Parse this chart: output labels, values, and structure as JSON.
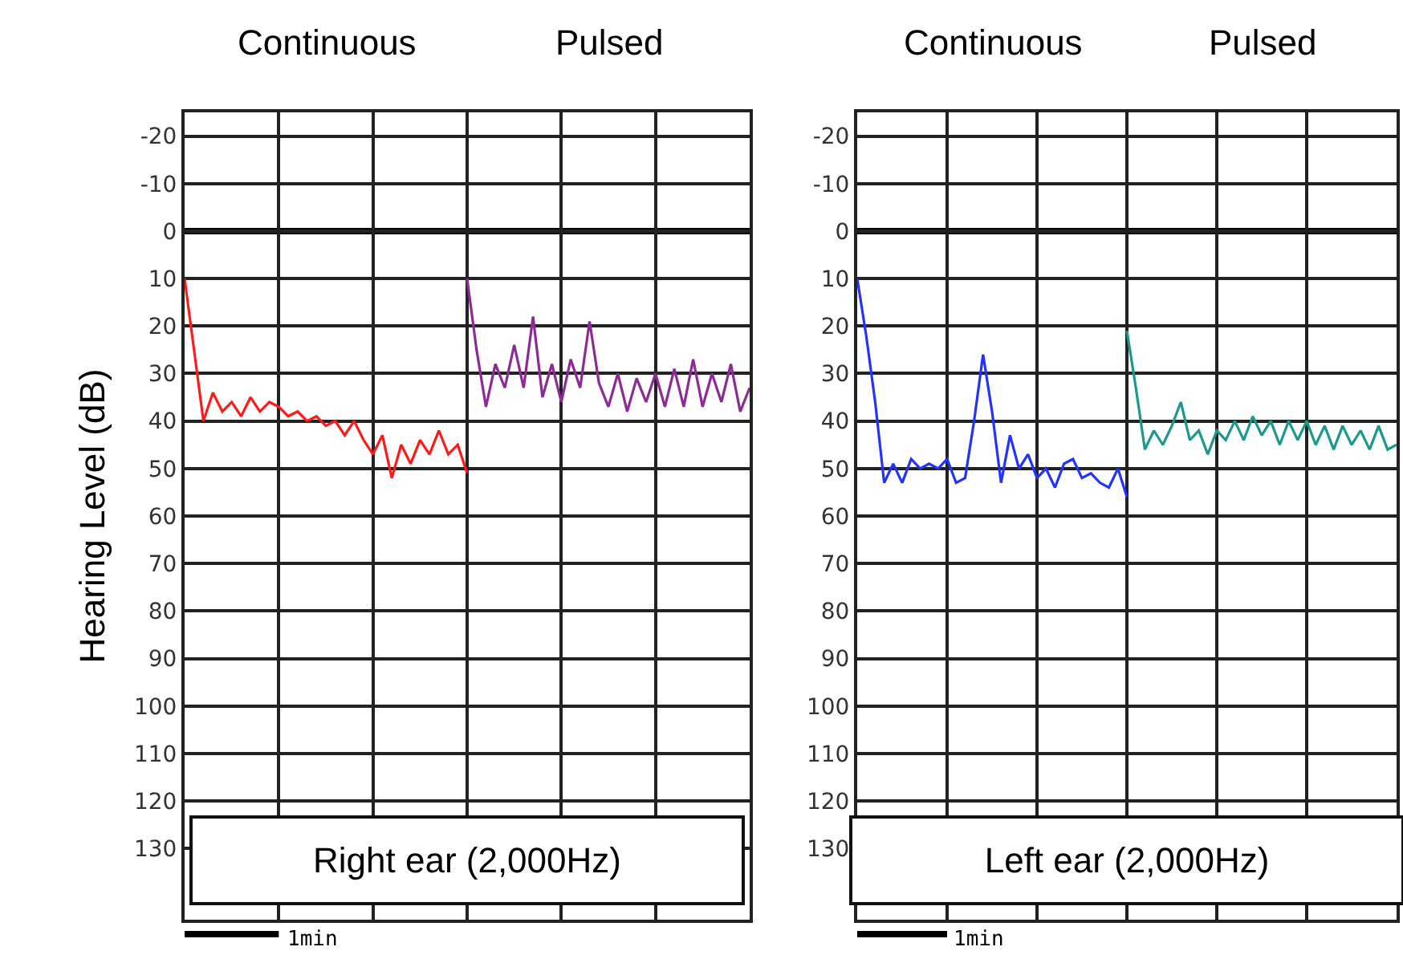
{
  "chart_data": [
    {
      "type": "line",
      "ylabel": "Hearing Level (dB)",
      "categories": [
        null,
        null,
        null,
        null,
        null,
        null,
        null,
        null,
        null,
        null,
        null,
        null,
        null,
        null,
        null,
        null,
        null,
        null,
        null,
        null,
        null,
        null,
        null,
        null,
        null,
        null,
        null,
        null,
        null,
        null,
        null,
        null,
        null,
        null,
        null,
        null,
        null,
        null,
        null,
        null,
        null,
        null,
        null,
        null,
        null,
        null,
        null,
        null,
        null,
        null,
        null,
        null,
        null,
        null,
        null,
        null,
        null,
        null,
        null,
        null,
        null
      ],
      "series": [
        {
          "color": "#ff1a1a",
          "values": [
            10,
            25,
            40,
            34,
            38,
            36,
            39,
            35,
            38,
            36,
            37,
            39,
            38,
            40,
            39,
            41,
            40,
            43,
            40,
            44,
            47,
            43,
            52,
            45,
            49,
            44,
            47,
            42,
            47,
            45,
            51,
            null,
            null,
            null,
            null,
            null,
            null,
            null,
            null,
            null,
            null,
            null,
            null,
            null,
            null,
            null,
            null,
            null,
            null,
            null,
            null,
            null,
            null,
            null,
            null,
            null,
            null,
            null,
            null,
            null,
            null
          ]
        },
        {
          "color": "#8e2a96",
          "values": [
            null,
            null,
            null,
            null,
            null,
            null,
            null,
            null,
            null,
            null,
            null,
            null,
            null,
            null,
            null,
            null,
            null,
            null,
            null,
            null,
            null,
            null,
            null,
            null,
            null,
            null,
            null,
            null,
            null,
            null,
            10,
            25,
            37,
            28,
            33,
            24,
            33,
            18,
            35,
            28,
            36,
            27,
            33,
            19,
            32,
            37,
            30,
            38,
            31,
            36,
            30,
            37,
            29,
            37,
            27,
            37,
            30,
            36,
            28,
            38,
            33
          ]
        }
      ],
      "ylim": [
        145,
        -25
      ],
      "yticks": [
        -20,
        -10,
        0,
        10,
        20,
        30,
        40,
        50,
        60,
        70,
        80,
        90,
        100,
        110,
        120,
        130
      ],
      "grid": true,
      "tick_labels": "y",
      "marker": "none",
      "line_style": "solid",
      "ref_lines": [
        {
          "axis": "y",
          "value": 0,
          "color": "#000000"
        }
      ],
      "annotations": [
        "Continuous",
        "Pulsed",
        "Right ear (2,000Hz)",
        "1min"
      ]
    },
    {
      "type": "line",
      "categories": [
        null,
        null,
        null,
        null,
        null,
        null,
        null,
        null,
        null,
        null,
        null,
        null,
        null,
        null,
        null,
        null,
        null,
        null,
        null,
        null,
        null,
        null,
        null,
        null,
        null,
        null,
        null,
        null,
        null,
        null,
        null,
        null,
        null,
        null,
        null,
        null,
        null,
        null,
        null,
        null,
        null,
        null,
        null,
        null,
        null,
        null,
        null,
        null,
        null,
        null,
        null,
        null,
        null,
        null,
        null,
        null,
        null,
        null,
        null,
        null,
        null
      ],
      "series": [
        {
          "color": "#2233ff",
          "values": [
            10,
            22,
            36,
            53,
            49,
            53,
            48,
            50,
            49,
            50,
            48,
            53,
            52,
            40,
            26,
            38,
            53,
            43,
            50,
            47,
            52,
            50,
            54,
            49,
            48,
            52,
            51,
            53,
            54,
            50,
            56,
            null,
            null,
            null,
            null,
            null,
            null,
            null,
            null,
            null,
            null,
            null,
            null,
            null,
            null,
            null,
            null,
            null,
            null,
            null,
            null,
            null,
            null,
            null,
            null,
            null,
            null,
            null,
            null,
            null,
            null
          ]
        },
        {
          "color": "#1a9a8c",
          "values": [
            null,
            null,
            null,
            null,
            null,
            null,
            null,
            null,
            null,
            null,
            null,
            null,
            null,
            null,
            null,
            null,
            null,
            null,
            null,
            null,
            null,
            null,
            null,
            null,
            null,
            null,
            null,
            null,
            null,
            null,
            21,
            33,
            46,
            42,
            45,
            41,
            36,
            44,
            42,
            47,
            42,
            44,
            40,
            44,
            39,
            43,
            40,
            45,
            40,
            44,
            40,
            45,
            41,
            46,
            41,
            45,
            42,
            46,
            41,
            46,
            45
          ]
        }
      ],
      "ylim": [
        145,
        -25
      ],
      "yticks": [
        -20,
        -10,
        0,
        10,
        20,
        30,
        40,
        50,
        60,
        70,
        80,
        90,
        100,
        110,
        120,
        130
      ],
      "grid": true,
      "tick_labels": "y",
      "marker": "none",
      "line_style": "solid",
      "ref_lines": [
        {
          "axis": "y",
          "value": 0,
          "color": "#000000"
        }
      ],
      "annotations": [
        "Continuous",
        "Pulsed",
        "Left ear (2,000Hz)",
        "1min"
      ]
    }
  ]
}
